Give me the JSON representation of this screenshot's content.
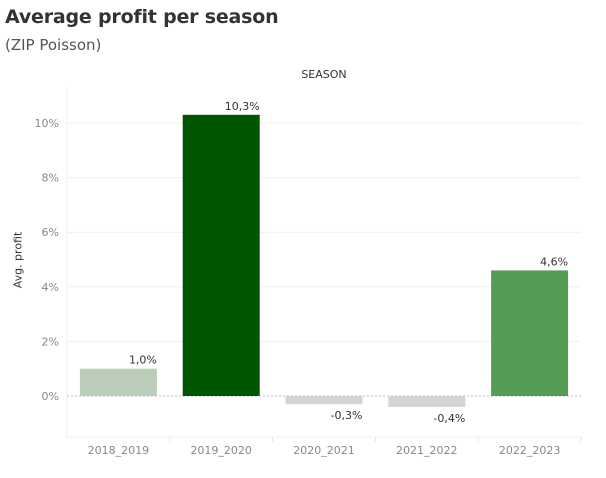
{
  "header": {
    "title": "Average profit per season",
    "subtitle": "(ZIP Poisson)",
    "column_header": "SEASON"
  },
  "chart_data": {
    "type": "bar",
    "title": "Average profit per season",
    "subtitle": "(ZIP Poisson)",
    "xlabel": "SEASON",
    "ylabel": "Avg. profit",
    "categories": [
      "2018_2019",
      "2019_2020",
      "2020_2021",
      "2021_2022",
      "2022_2023"
    ],
    "values": [
      1.0,
      10.3,
      -0.3,
      -0.4,
      4.6
    ],
    "data_labels": [
      "1,0%",
      "10,3%",
      "-0,3%",
      "-0,4%",
      "4,6%"
    ],
    "colors": [
      "#bacdb8",
      "#005500",
      "#d4d4d4",
      "#d4d4d4",
      "#559d55"
    ],
    "ylim": [
      -1.5,
      11.3
    ],
    "yticks": [
      0,
      2,
      4,
      6,
      8,
      10
    ],
    "ytick_labels": [
      "0%",
      "2%",
      "4%",
      "6%",
      "8%",
      "10%"
    ],
    "grid": true,
    "zero_line": "dashed"
  }
}
